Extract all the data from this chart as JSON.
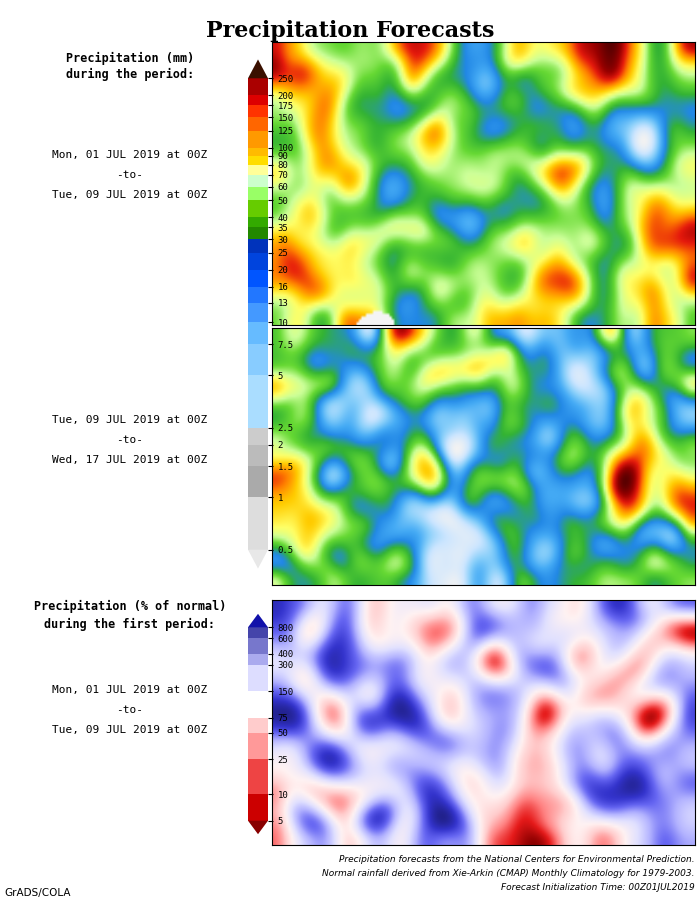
{
  "title": "Precipitation Forecasts",
  "panel1_label1": "Precipitation (mm)",
  "panel1_label2": "during the period:",
  "panel1_date1": "Mon, 01 JUL 2019 at 00Z",
  "panel1_to": "-to-",
  "panel1_date2": "Tue, 09 JUL 2019 at 00Z",
  "panel2_date1": "Tue, 09 JUL 2019 at 00Z",
  "panel2_to": "-to-",
  "panel2_date2": "Wed, 17 JUL 2019 at 00Z",
  "panel3_label1": "Precipitation (% of normal)",
  "panel3_label2": "during the first period:",
  "panel3_date1": "Mon, 01 JUL 2019 at 00Z",
  "panel3_to": "-to-",
  "panel3_date2": "Tue, 09 JUL 2019 at 00Z",
  "footer1": "Precipitation forecasts from the National Centers for Environmental Prediction.",
  "footer2": "Normal rainfall derived from Xie-Arkin (CMAP) Monthly Climatology for 1979-2003.",
  "footer3": "Forecast Initialization Time: 00Z01JUL2019",
  "watermark": "GrADS/COLA",
  "mm_levels": [
    0.5,
    1,
    1.5,
    2,
    2.5,
    5,
    7.5,
    10,
    13,
    16,
    20,
    25,
    30,
    35,
    40,
    50,
    60,
    70,
    80,
    90,
    100,
    125,
    150,
    175,
    200,
    250
  ],
  "mm_seg_colors": [
    "#dddddd",
    "#aaaaaa",
    "#bbbbbb",
    "#cccccc",
    "#aaddff",
    "#88ccff",
    "#66bbff",
    "#4499ff",
    "#2277ff",
    "#0055ff",
    "#0044dd",
    "#0033bb",
    "#228800",
    "#33aa00",
    "#66cc00",
    "#99ff66",
    "#ccffcc",
    "#ffff99",
    "#ffdd00",
    "#ffbb00",
    "#ff9900",
    "#ff6600",
    "#ff3300",
    "#dd0000",
    "#aa0000",
    "#660000"
  ],
  "mm_tick_labels": [
    "0.5",
    "1",
    "1.5",
    "2",
    "2.5",
    "5",
    "7.5",
    "10",
    "13",
    "16",
    "20",
    "25",
    "30",
    "35",
    "40",
    "50",
    "60",
    "70",
    "80",
    "90",
    "100",
    "125",
    "150",
    "175",
    "200",
    "250"
  ],
  "mm_top_color": "#3a1000",
  "mm_bot_color": "#e8e8e8",
  "pct_levels": [
    5,
    10,
    25,
    50,
    75,
    150,
    300,
    400,
    600,
    800
  ],
  "pct_seg_colors": [
    "#cc0000",
    "#ee4444",
    "#ff9999",
    "#ffcccc",
    "#ffffff",
    "#ddddff",
    "#aaaaee",
    "#7777cc",
    "#4444aa",
    "#222288"
  ],
  "pct_tick_labels": [
    "5",
    "10",
    "25",
    "50",
    "75",
    "150",
    "300",
    "400",
    "600",
    "800"
  ],
  "pct_top_color": "#1111aa",
  "pct_bot_color": "#880000",
  "bg_color": "#ffffff",
  "title_fontsize": 16,
  "label_fontsize": 8.5,
  "date_fontsize": 8.0,
  "footer_fontsize": 6.5,
  "watermark_fontsize": 7.5,
  "cb_tick_fontsize": 6.5
}
